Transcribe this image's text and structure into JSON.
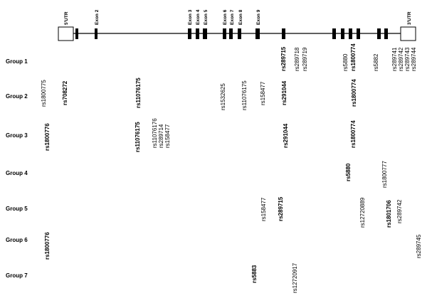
{
  "gene_map": {
    "utr5_label": "5'UTR",
    "utr3_label": "3'UTR",
    "exon_labels": [
      "Exon 2",
      "Exon 3",
      "Exon 4",
      "Exon 5",
      "Exon 6",
      "Exon 7",
      "Exon 8",
      "Exon 9"
    ]
  },
  "groups": [
    {
      "label": "Group 1",
      "snps": [
        {
          "id": "rs289715",
          "bold": true
        },
        {
          "id": "rs289718",
          "bold": false
        },
        {
          "id": "rs289719",
          "bold": false
        },
        {
          "id": "rs5880",
          "bold": false
        },
        {
          "id": "rs1800774",
          "bold": true
        },
        {
          "id": "rs5882",
          "bold": false
        },
        {
          "id": "rs289741",
          "bold": false
        },
        {
          "id": "rs289742",
          "bold": false
        },
        {
          "id": "rs289743",
          "bold": false
        },
        {
          "id": "rs289744",
          "bold": false
        }
      ]
    },
    {
      "label": "Group 2",
      "snps": [
        {
          "id": "rs1800775",
          "bold": false
        },
        {
          "id": "rs708272",
          "bold": true
        },
        {
          "id": "rs11076175",
          "bold": true
        },
        {
          "id": "rs1532625",
          "bold": false
        },
        {
          "id": "rs11076175",
          "bold": false
        },
        {
          "id": "rs158477",
          "bold": false
        },
        {
          "id": "rs291044",
          "bold": true
        },
        {
          "id": "rs1800774",
          "bold": true
        }
      ]
    },
    {
      "label": "Group 3",
      "snps": [
        {
          "id": "rs1800776",
          "bold": true
        },
        {
          "id": "rs11076175",
          "bold": true
        },
        {
          "id": "rs11076176",
          "bold": false
        },
        {
          "id": "rs289714",
          "bold": false
        },
        {
          "id": "rs158477",
          "bold": false
        },
        {
          "id": "rs291044",
          "bold": true
        },
        {
          "id": "rs1800774",
          "bold": true
        }
      ]
    },
    {
      "label": "Group 4",
      "snps": [
        {
          "id": "rs5880",
          "bold": true
        },
        {
          "id": "rs1800777",
          "bold": false
        }
      ]
    },
    {
      "label": "Group 5",
      "snps": [
        {
          "id": "rs158477",
          "bold": false
        },
        {
          "id": "rs289715",
          "bold": true
        },
        {
          "id": "rs12720889",
          "bold": false
        },
        {
          "id": "rs1801706",
          "bold": true
        },
        {
          "id": "rs289742",
          "bold": false
        }
      ]
    },
    {
      "label": "Group 6",
      "snps": [
        {
          "id": "rs1800776",
          "bold": true
        },
        {
          "id": "rs289745",
          "bold": false
        }
      ]
    },
    {
      "label": "Group 7",
      "snps": [
        {
          "id": "rs5883",
          "bold": true
        },
        {
          "id": "rs12720917",
          "bold": false
        }
      ]
    }
  ]
}
